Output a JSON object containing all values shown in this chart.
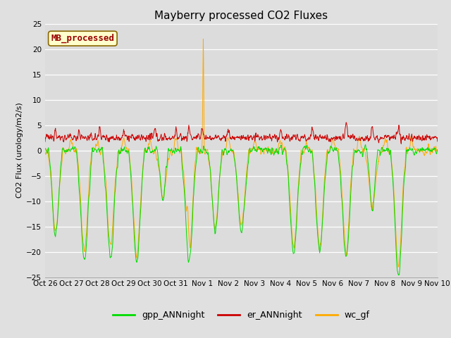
{
  "title": "Mayberry processed CO2 Fluxes",
  "ylabel": "CO2 Flux (urology/m2/s)",
  "ylim": [
    -25,
    25
  ],
  "fig_facecolor": "#e0e0e0",
  "plot_bg_color": "#dcdcdc",
  "gpp_color": "#00dd00",
  "er_color": "#cc0000",
  "wc_color": "#ffaa00",
  "legend_label": "MB_processed",
  "legend_box_facecolor": "#ffffcc",
  "legend_box_edge": "#886600",
  "series_labels": [
    "gpp_ANNnight",
    "er_ANNnight",
    "wc_gf"
  ],
  "x_tick_labels": [
    "Oct 26",
    "Oct 27",
    "Oct 28",
    "Oct 29",
    "Oct 30",
    "Oct 31",
    "Nov 1",
    "Nov 2",
    "Nov 3",
    "Nov 4",
    "Nov 5",
    "Nov 6",
    "Nov 7",
    "Nov 8",
    "Nov 9",
    "Nov 10"
  ],
  "title_fontsize": 11,
  "axis_fontsize": 8,
  "tick_fontsize": 7.5,
  "legend_fontsize": 9
}
